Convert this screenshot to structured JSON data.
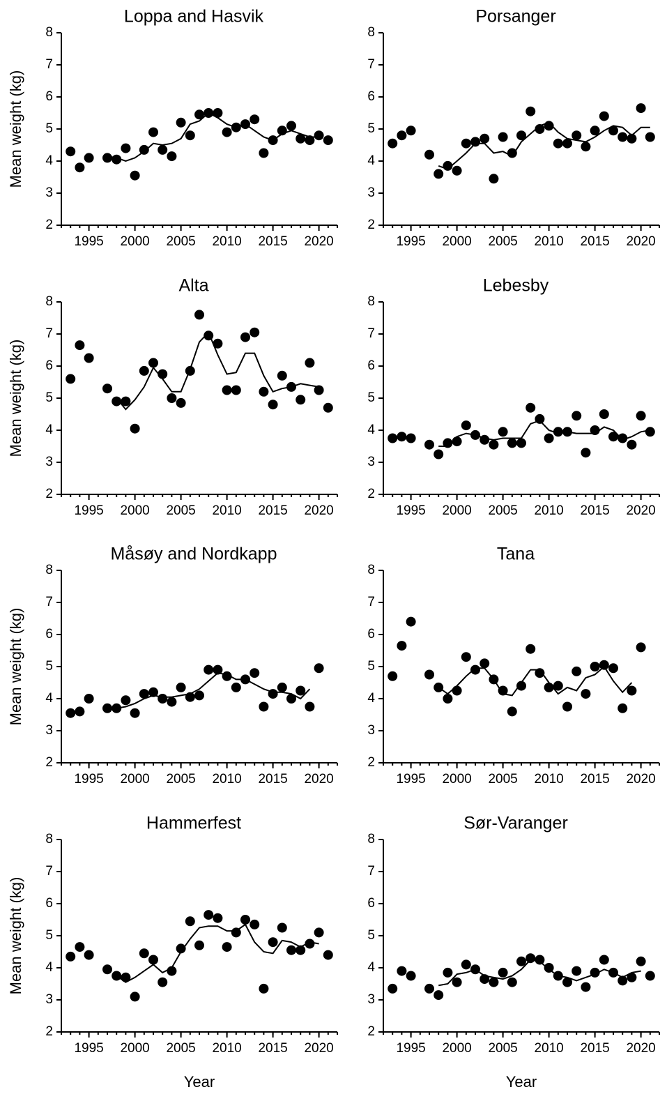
{
  "chart_data": [
    {
      "type": "scatter",
      "title": "Loppa and Hasvik",
      "ylabel": "Mean weight (kg)",
      "x": [
        1993,
        1994,
        1995,
        1997,
        1998,
        1999,
        2000,
        2001,
        2002,
        2003,
        2004,
        2005,
        2006,
        2007,
        2008,
        2009,
        2010,
        2011,
        2012,
        2013,
        2014,
        2015,
        2016,
        2017,
        2018,
        2019,
        2020,
        2021
      ],
      "series": [
        {
          "type": "scatter",
          "color": "#000000",
          "values": [
            4.3,
            3.8,
            4.1,
            4.1,
            4.05,
            4.4,
            3.55,
            4.35,
            4.9,
            4.35,
            4.15,
            5.2,
            4.8,
            5.45,
            5.5,
            5.5,
            4.9,
            5.05,
            5.15,
            5.3,
            4.25,
            4.65,
            4.95,
            5.1,
            4.7,
            4.65,
            4.8,
            4.65
          ]
        },
        {
          "type": "line",
          "color": "#000000",
          "values": [
            null,
            null,
            null,
            4.15,
            4.1,
            4.0,
            4.1,
            4.3,
            4.55,
            4.5,
            4.55,
            4.7,
            5.15,
            5.25,
            5.5,
            5.35,
            5.15,
            5.05,
            5.15,
            4.95,
            4.75,
            4.65,
            4.85,
            4.95,
            4.85,
            4.75,
            4.75,
            null
          ]
        }
      ],
      "xlim": [
        1992,
        2022
      ],
      "xticks": [
        1995,
        2000,
        2005,
        2010,
        2015,
        2020
      ],
      "ylim": [
        2,
        8
      ],
      "yticks": [
        2,
        3,
        4,
        5,
        6,
        7,
        8
      ]
    },
    {
      "type": "scatter",
      "title": "Porsanger",
      "x": [
        1993,
        1994,
        1995,
        1997,
        1998,
        1999,
        2000,
        2001,
        2002,
        2003,
        2004,
        2005,
        2006,
        2007,
        2008,
        2009,
        2010,
        2011,
        2012,
        2013,
        2014,
        2015,
        2016,
        2017,
        2018,
        2019,
        2020,
        2021
      ],
      "series": [
        {
          "type": "scatter",
          "color": "#000000",
          "values": [
            4.55,
            4.8,
            4.95,
            4.2,
            3.6,
            3.85,
            3.7,
            4.55,
            4.6,
            4.7,
            3.45,
            4.75,
            4.25,
            4.8,
            5.55,
            5.0,
            5.1,
            4.55,
            4.55,
            4.8,
            4.45,
            4.95,
            5.4,
            4.95,
            4.75,
            4.7,
            5.65,
            4.75
          ]
        },
        {
          "type": "line",
          "color": "#000000",
          "values": [
            null,
            null,
            null,
            null,
            3.85,
            3.75,
            4.0,
            4.25,
            4.55,
            4.55,
            4.25,
            4.3,
            4.15,
            4.6,
            4.85,
            5.1,
            5.2,
            4.9,
            4.7,
            4.65,
            4.6,
            4.75,
            4.95,
            5.1,
            5.05,
            4.8,
            5.05,
            5.05
          ]
        }
      ],
      "xlim": [
        1992,
        2022
      ],
      "xticks": [
        1995,
        2000,
        2005,
        2010,
        2015,
        2020
      ],
      "ylim": [
        2,
        8
      ],
      "yticks": [
        2,
        3,
        4,
        5,
        6,
        7,
        8
      ]
    },
    {
      "type": "scatter",
      "title": "Alta",
      "ylabel": "Mean weight (kg)",
      "x": [
        1993,
        1994,
        1995,
        1997,
        1998,
        1999,
        2000,
        2001,
        2002,
        2003,
        2004,
        2005,
        2006,
        2007,
        2008,
        2009,
        2010,
        2011,
        2012,
        2013,
        2014,
        2015,
        2016,
        2017,
        2018,
        2019,
        2020,
        2021
      ],
      "series": [
        {
          "type": "scatter",
          "color": "#000000",
          "values": [
            5.6,
            6.65,
            6.25,
            5.3,
            4.9,
            4.9,
            4.05,
            5.85,
            6.1,
            5.75,
            5.0,
            4.85,
            5.85,
            7.6,
            6.95,
            6.7,
            5.25,
            5.25,
            6.9,
            7.05,
            5.2,
            4.8,
            5.7,
            5.35,
            4.95,
            6.1,
            5.25,
            4.7
          ]
        },
        {
          "type": "line",
          "color": "#000000",
          "values": [
            null,
            null,
            null,
            null,
            5.0,
            4.65,
            4.95,
            5.35,
            5.95,
            5.6,
            5.2,
            5.2,
            5.9,
            6.75,
            7.05,
            6.35,
            5.75,
            5.8,
            6.4,
            6.4,
            5.7,
            5.2,
            5.3,
            5.35,
            5.45,
            5.4,
            5.35,
            null
          ]
        }
      ],
      "xlim": [
        1992,
        2022
      ],
      "xticks": [
        1995,
        2000,
        2005,
        2010,
        2015,
        2020
      ],
      "ylim": [
        2,
        8
      ],
      "yticks": [
        2,
        3,
        4,
        5,
        6,
        7,
        8
      ]
    },
    {
      "type": "scatter",
      "title": "Lebesby",
      "x": [
        1993,
        1994,
        1995,
        1997,
        1998,
        1999,
        2000,
        2001,
        2002,
        2003,
        2004,
        2005,
        2006,
        2007,
        2008,
        2009,
        2010,
        2011,
        2012,
        2013,
        2014,
        2015,
        2016,
        2017,
        2018,
        2019,
        2020,
        2021
      ],
      "series": [
        {
          "type": "scatter",
          "color": "#000000",
          "values": [
            3.75,
            3.8,
            3.75,
            3.55,
            3.25,
            3.6,
            3.65,
            4.15,
            3.85,
            3.7,
            3.55,
            3.95,
            3.6,
            3.6,
            4.7,
            4.35,
            3.75,
            3.95,
            3.95,
            4.45,
            3.3,
            4.0,
            4.5,
            3.8,
            3.75,
            3.55,
            4.45,
            3.95
          ]
        },
        {
          "type": "line",
          "color": "#000000",
          "values": [
            null,
            null,
            null,
            null,
            3.5,
            3.5,
            3.8,
            3.9,
            3.85,
            3.75,
            3.7,
            3.75,
            3.75,
            3.75,
            4.2,
            4.3,
            4.0,
            3.9,
            3.95,
            3.9,
            3.9,
            3.9,
            4.1,
            4.0,
            3.7,
            3.8,
            3.95,
            4.0
          ]
        }
      ],
      "xlim": [
        1992,
        2022
      ],
      "xticks": [
        1995,
        2000,
        2005,
        2010,
        2015,
        2020
      ],
      "ylim": [
        2,
        8
      ],
      "yticks": [
        2,
        3,
        4,
        5,
        6,
        7,
        8
      ]
    },
    {
      "type": "scatter",
      "title": "Måsøy and Nordkapp",
      "ylabel": "Mean weight (kg)",
      "x": [
        1993,
        1994,
        1995,
        1997,
        1998,
        1999,
        2000,
        2001,
        2002,
        2003,
        2004,
        2005,
        2006,
        2007,
        2008,
        2009,
        2010,
        2011,
        2012,
        2013,
        2014,
        2015,
        2016,
        2017,
        2018,
        2019,
        2020,
        2021
      ],
      "series": [
        {
          "type": "scatter",
          "color": "#000000",
          "values": [
            3.55,
            3.6,
            4.0,
            3.7,
            3.7,
            3.95,
            3.55,
            4.15,
            4.2,
            4.0,
            3.9,
            4.35,
            4.05,
            4.1,
            4.9,
            4.9,
            4.7,
            4.35,
            4.6,
            4.8,
            3.75,
            4.15,
            4.35,
            4.0,
            4.25,
            3.75,
            4.95,
            null
          ]
        },
        {
          "type": "line",
          "color": "#000000",
          "values": [
            null,
            null,
            null,
            null,
            3.7,
            3.75,
            3.85,
            4.0,
            4.1,
            4.05,
            4.05,
            4.1,
            4.15,
            4.3,
            4.55,
            4.8,
            4.75,
            4.6,
            4.6,
            4.45,
            4.3,
            4.2,
            4.2,
            4.15,
            4.0,
            4.3,
            null,
            null
          ]
        }
      ],
      "xlim": [
        1992,
        2022
      ],
      "xticks": [
        1995,
        2000,
        2005,
        2010,
        2015,
        2020
      ],
      "ylim": [
        2,
        8
      ],
      "yticks": [
        2,
        3,
        4,
        5,
        6,
        7,
        8
      ]
    },
    {
      "type": "scatter",
      "title": "Tana",
      "x": [
        1993,
        1994,
        1995,
        1997,
        1998,
        1999,
        2000,
        2001,
        2002,
        2003,
        2004,
        2005,
        2006,
        2007,
        2008,
        2009,
        2010,
        2011,
        2012,
        2013,
        2014,
        2015,
        2016,
        2017,
        2018,
        2019,
        2020,
        2021
      ],
      "series": [
        {
          "type": "scatter",
          "color": "#000000",
          "values": [
            4.7,
            5.65,
            6.4,
            4.75,
            4.35,
            4.0,
            4.25,
            5.3,
            4.9,
            5.1,
            4.6,
            4.25,
            3.6,
            4.4,
            5.55,
            4.8,
            4.35,
            4.4,
            3.75,
            4.85,
            4.15,
            5.0,
            5.05,
            4.95,
            3.7,
            4.25,
            5.6,
            null
          ]
        },
        {
          "type": "line",
          "color": "#000000",
          "values": [
            null,
            null,
            null,
            null,
            4.35,
            4.15,
            4.4,
            4.7,
            4.95,
            4.95,
            4.6,
            4.15,
            4.1,
            4.5,
            4.9,
            4.9,
            4.5,
            4.15,
            4.35,
            4.25,
            4.65,
            4.75,
            5.0,
            4.55,
            4.2,
            4.5,
            null,
            null
          ]
        }
      ],
      "xlim": [
        1992,
        2022
      ],
      "xticks": [
        1995,
        2000,
        2005,
        2010,
        2015,
        2020
      ],
      "ylim": [
        2,
        8
      ],
      "yticks": [
        2,
        3,
        4,
        5,
        6,
        7,
        8
      ]
    },
    {
      "type": "scatter",
      "title": "Hammerfest",
      "ylabel": "Mean weight (kg)",
      "xlabel": "Year",
      "x": [
        1993,
        1994,
        1995,
        1997,
        1998,
        1999,
        2000,
        2001,
        2002,
        2003,
        2004,
        2005,
        2006,
        2007,
        2008,
        2009,
        2010,
        2011,
        2012,
        2013,
        2014,
        2015,
        2016,
        2017,
        2018,
        2019,
        2020,
        2021
      ],
      "series": [
        {
          "type": "scatter",
          "color": "#000000",
          "values": [
            4.35,
            4.65,
            4.4,
            3.95,
            3.75,
            3.7,
            3.1,
            4.45,
            4.25,
            3.55,
            3.9,
            4.6,
            5.45,
            4.7,
            5.65,
            5.55,
            4.65,
            5.1,
            5.5,
            5.35,
            3.35,
            4.8,
            5.25,
            4.55,
            4.55,
            4.75,
            5.1,
            4.4
          ]
        },
        {
          "type": "line",
          "color": "#000000",
          "values": [
            null,
            null,
            null,
            null,
            3.75,
            3.55,
            3.7,
            3.9,
            4.1,
            3.85,
            4.0,
            4.5,
            4.9,
            5.25,
            5.3,
            5.3,
            5.15,
            5.15,
            5.35,
            4.8,
            4.5,
            4.45,
            4.85,
            4.8,
            4.65,
            4.8,
            4.75,
            null
          ]
        }
      ],
      "xlim": [
        1992,
        2022
      ],
      "xticks": [
        1995,
        2000,
        2005,
        2010,
        2015,
        2020
      ],
      "ylim": [
        2,
        8
      ],
      "yticks": [
        2,
        3,
        4,
        5,
        6,
        7,
        8
      ]
    },
    {
      "type": "scatter",
      "title": "Sør-Varanger",
      "xlabel": "Year",
      "x": [
        1993,
        1994,
        1995,
        1997,
        1998,
        1999,
        2000,
        2001,
        2002,
        2003,
        2004,
        2005,
        2006,
        2007,
        2008,
        2009,
        2010,
        2011,
        2012,
        2013,
        2014,
        2015,
        2016,
        2017,
        2018,
        2019,
        2020,
        2021
      ],
      "series": [
        {
          "type": "scatter",
          "color": "#000000",
          "values": [
            3.35,
            3.9,
            3.75,
            3.35,
            3.15,
            3.85,
            3.55,
            4.1,
            3.95,
            3.65,
            3.55,
            3.85,
            3.55,
            4.2,
            4.3,
            4.25,
            4.0,
            3.75,
            3.55,
            3.9,
            3.4,
            3.85,
            4.25,
            3.85,
            3.6,
            3.7,
            4.2,
            3.75
          ]
        },
        {
          "type": "line",
          "color": "#000000",
          "values": [
            null,
            null,
            null,
            null,
            3.45,
            3.5,
            3.8,
            3.85,
            3.95,
            3.75,
            3.7,
            3.65,
            3.75,
            3.95,
            4.25,
            4.2,
            3.95,
            3.75,
            3.7,
            3.6,
            3.7,
            3.8,
            3.95,
            3.85,
            3.7,
            3.85,
            3.9,
            null
          ]
        }
      ],
      "xlim": [
        1992,
        2022
      ],
      "xticks": [
        1995,
        2000,
        2005,
        2010,
        2015,
        2020
      ],
      "ylim": [
        2,
        8
      ],
      "yticks": [
        2,
        3,
        4,
        5,
        6,
        7,
        8
      ]
    }
  ]
}
